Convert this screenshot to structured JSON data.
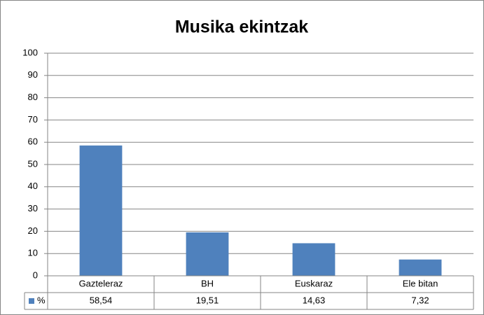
{
  "chart_data": {
    "type": "bar",
    "title": "Musika ekintzak",
    "categories": [
      "Gazteleraz",
      "BH",
      "Euskaraz",
      "Ele bitan"
    ],
    "series": [
      {
        "name": "%",
        "color": "#4f81bd",
        "values": [
          58.54,
          19.51,
          14.63,
          7.32
        ],
        "value_labels": [
          "58,54",
          "19,51",
          "14,63",
          "7,32"
        ]
      }
    ],
    "ylim": [
      0,
      100
    ],
    "yticks": [
      0,
      10,
      20,
      30,
      40,
      50,
      60,
      70,
      80,
      90,
      100
    ],
    "grid": true,
    "data_table": true
  }
}
